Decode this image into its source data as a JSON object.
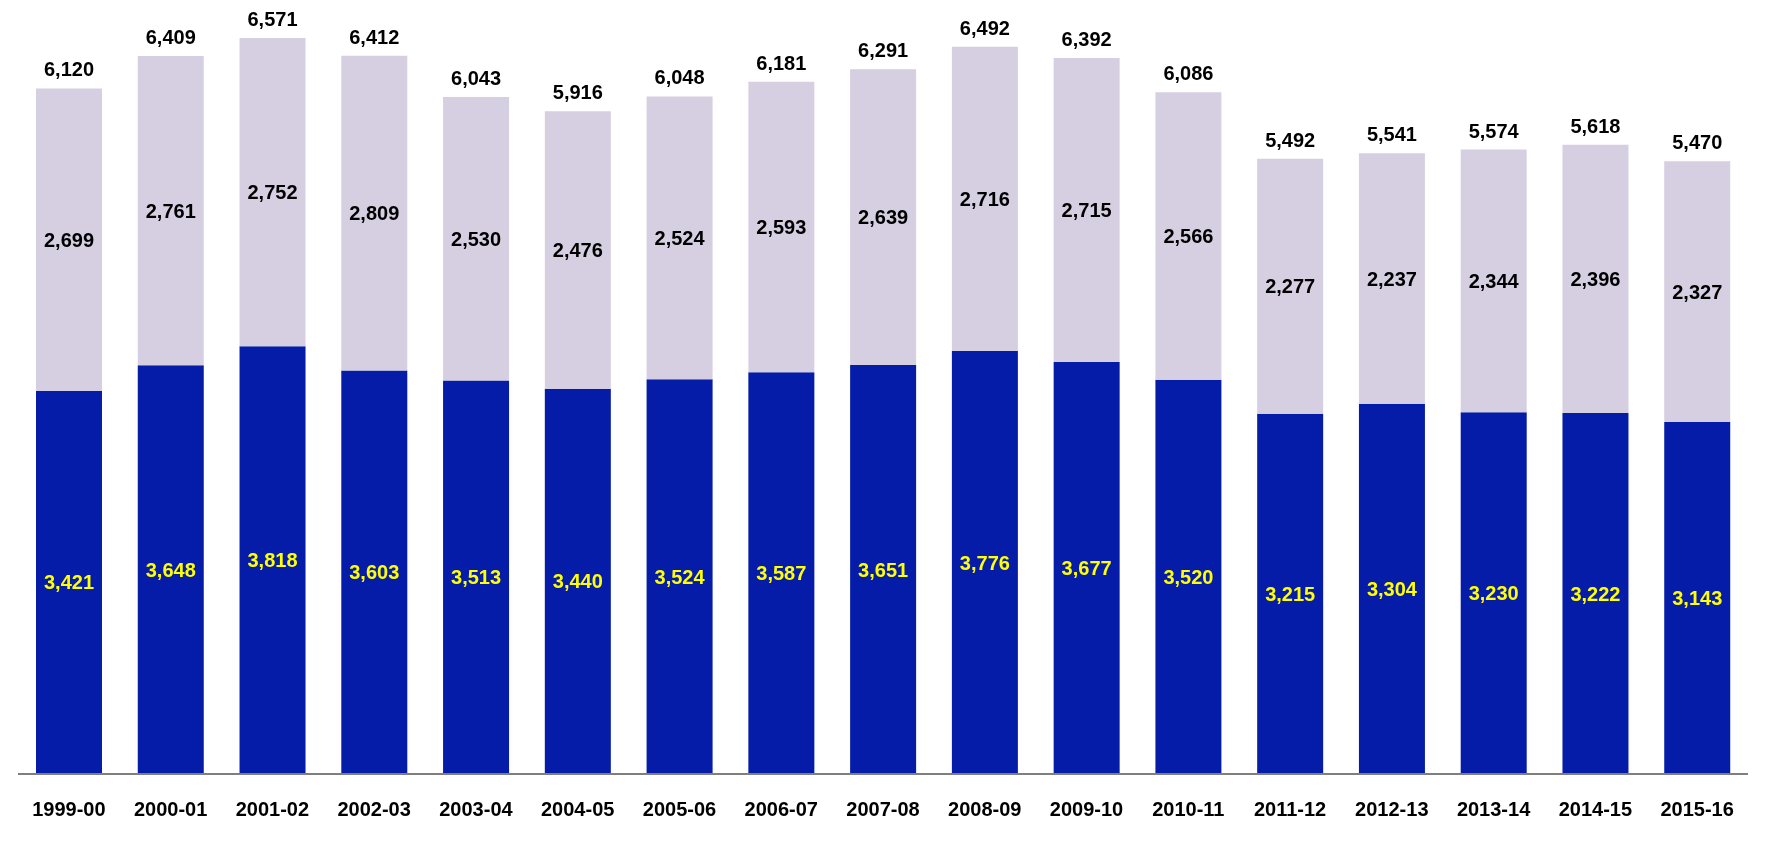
{
  "chart_data": {
    "type": "bar",
    "stacked": true,
    "categories": [
      "1999-00",
      "2000-01",
      "2001-02",
      "2002-03",
      "2003-04",
      "2004-05",
      "2005-06",
      "2006-07",
      "2007-08",
      "2008-09",
      "2009-10",
      "2010-11",
      "2011-12",
      "2012-13",
      "2013-14",
      "2014-15",
      "2015-16"
    ],
    "series": [
      {
        "color": "#041ca8",
        "values": [
          3421,
          3648,
          3818,
          3603,
          3513,
          3440,
          3524,
          3587,
          3651,
          3776,
          3677,
          3520,
          3215,
          3304,
          3230,
          3222,
          3143
        ],
        "value_labels": [
          "3,421",
          "3,648",
          "3,818",
          "3,603",
          "3,513",
          "3,440",
          "3,524",
          "3,587",
          "3,651",
          "3,776",
          "3,677",
          "3,520",
          "3,215",
          "3,304",
          "3,230",
          "3,222",
          "3,143"
        ]
      },
      {
        "color": "#d6cfe2",
        "values": [
          2699,
          2761,
          2752,
          2809,
          2530,
          2476,
          2524,
          2593,
          2639,
          2716,
          2715,
          2566,
          2277,
          2237,
          2344,
          2396,
          2327
        ],
        "value_labels": [
          "2,699",
          "2,761",
          "2,752",
          "2,809",
          "2,530",
          "2,476",
          "2,524",
          "2,593",
          "2,639",
          "2,716",
          "2,715",
          "2,566",
          "2,277",
          "2,237",
          "2,344",
          "2,396",
          "2,327"
        ]
      }
    ],
    "totals": [
      "6,120",
      "6,409",
      "6,571",
      "6,412",
      "6,043",
      "5,916",
      "6,048",
      "6,181",
      "6,291",
      "6,492",
      "6,392",
      "6,086",
      "5,492",
      "5,541",
      "5,574",
      "5,618",
      "5,470"
    ]
  }
}
